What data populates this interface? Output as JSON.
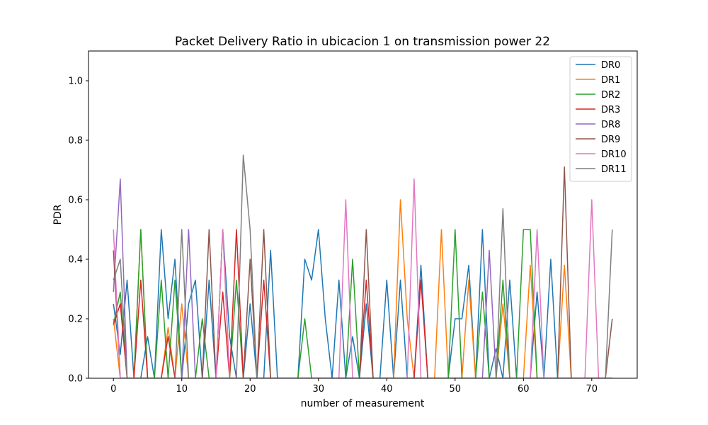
{
  "chart_data": {
    "type": "line",
    "title": "Packet Delivery Ratio in ubicacion 1 on transmission power 22",
    "xlabel": "number of measurement",
    "ylabel": "PDR",
    "xlim": [
      -3.65,
      76.65
    ],
    "ylim": [
      0,
      1.1
    ],
    "xticks": [
      0,
      10,
      20,
      30,
      40,
      50,
      60,
      70
    ],
    "yticks": [
      0.0,
      0.2,
      0.4,
      0.6,
      0.8,
      1.0
    ],
    "xtick_labels": [
      "0",
      "10",
      "20",
      "30",
      "40",
      "50",
      "60",
      "70"
    ],
    "ytick_labels": [
      "0.0",
      "0.2",
      "0.4",
      "0.6",
      "0.8",
      "1.0"
    ],
    "grid": false,
    "legend_position": "upper right",
    "series": [
      {
        "name": "DR0",
        "color": "#1f77b4",
        "values": [
          0.25,
          0.08,
          0.33,
          0.0,
          0.0,
          0.14,
          0.0,
          0.5,
          0.2,
          0.4,
          0.0,
          0.25,
          0.33,
          0.0,
          0.33,
          0.0,
          0.5,
          0.14,
          0.0,
          0.0,
          0.25,
          0.0,
          0.0,
          0.43,
          0.0,
          0.0,
          0.0,
          0.0,
          0.4,
          0.33,
          0.5,
          0.2,
          0.0,
          0.33,
          0.0,
          0.14,
          0.0,
          0.25,
          0.0,
          0.0,
          0.33,
          0.0,
          0.33,
          0.0,
          0.0,
          0.38,
          0.0,
          0.0,
          0.0,
          0.0,
          0.2,
          0.2,
          0.38,
          0.0,
          0.5,
          0.0,
          0.1,
          0.0,
          0.33,
          0.0,
          0.0,
          0.0,
          0.29,
          0.0,
          0.4,
          0.0,
          0.0,
          0.0,
          0.0,
          0.0,
          0.0,
          0.0,
          0.0,
          0.0
        ]
      },
      {
        "name": "DR1",
        "color": "#ff7f0e",
        "values": [
          0.2,
          0.0,
          0.0,
          0.0,
          0.5,
          0.0,
          0.0,
          0.0,
          0.17,
          0.0,
          0.25,
          0.0,
          0.0,
          0.0,
          0.0,
          0.0,
          0.5,
          0.0,
          0.0,
          0.0,
          0.0,
          0.0,
          0.0,
          0.0,
          0.0,
          0.0,
          0.0,
          0.0,
          0.0,
          0.0,
          0.0,
          0.0,
          0.0,
          0.0,
          0.0,
          0.0,
          0.0,
          0.0,
          0.0,
          0.0,
          0.0,
          0.0,
          0.6,
          0.2,
          0.0,
          0.0,
          0.0,
          0.0,
          0.5,
          0.0,
          0.0,
          0.0,
          0.33,
          0.0,
          0.0,
          0.0,
          0.0,
          0.25,
          0.0,
          0.0,
          0.0,
          0.38,
          0.0,
          0.0,
          0.0,
          0.0,
          0.38,
          0.0,
          0.0,
          0.0,
          0.0,
          0.0,
          0.0,
          0.0
        ]
      },
      {
        "name": "DR2",
        "color": "#2ca02c",
        "values": [
          0.18,
          0.29,
          0.0,
          0.0,
          0.5,
          0.0,
          0.0,
          0.33,
          0.0,
          0.33,
          0.0,
          0.0,
          0.0,
          0.2,
          0.0,
          0.0,
          0.0,
          0.0,
          0.33,
          0.0,
          0.0,
          0.0,
          0.0,
          0.0,
          0.0,
          0.0,
          0.0,
          0.0,
          0.2,
          0.0,
          0.0,
          0.0,
          0.0,
          0.0,
          0.0,
          0.4,
          0.0,
          0.0,
          0.0,
          0.0,
          0.0,
          0.0,
          0.0,
          0.0,
          0.0,
          0.0,
          0.0,
          0.0,
          0.0,
          0.0,
          0.5,
          0.0,
          0.0,
          0.0,
          0.29,
          0.0,
          0.0,
          0.33,
          0.0,
          0.0,
          0.5,
          0.5,
          0.0,
          0.0,
          0.0,
          0.0,
          0.0,
          0.0,
          0.0,
          0.0,
          0.0,
          0.0,
          0.0,
          0.0
        ]
      },
      {
        "name": "DR3",
        "color": "#d62728",
        "values": [
          0.18,
          0.25,
          0.0,
          0.0,
          0.33,
          0.0,
          0.0,
          0.0,
          0.14,
          0.0,
          0.0,
          0.0,
          0.0,
          0.0,
          0.0,
          0.0,
          0.29,
          0.0,
          0.5,
          0.0,
          0.0,
          0.0,
          0.33,
          0.0,
          0.0,
          0.0,
          0.0,
          0.0,
          0.0,
          0.0,
          0.0,
          0.0,
          0.0,
          0.0,
          0.0,
          0.0,
          0.0,
          0.33,
          0.0,
          0.0,
          0.0,
          0.0,
          0.0,
          0.0,
          0.0,
          0.33,
          0.0,
          0.0,
          0.0,
          0.0,
          0.0,
          0.0,
          0.0,
          0.0,
          0.0,
          0.0,
          0.0,
          0.0,
          0.0,
          0.0,
          0.0,
          0.0,
          0.0,
          0.0,
          0.0,
          0.0,
          0.0,
          0.0,
          0.0,
          0.0,
          0.0,
          0.0,
          0.0,
          0.0
        ]
      },
      {
        "name": "DR8",
        "color": "#9467bd",
        "values": [
          0.29,
          0.67,
          0.0,
          0.0,
          0.0,
          0.0,
          0.0,
          0.0,
          0.0,
          0.0,
          0.0,
          0.5,
          0.0,
          0.0,
          0.0,
          0.0,
          0.0,
          0.0,
          0.0,
          0.0,
          0.0,
          0.0,
          0.0,
          0.0,
          0.0,
          0.0,
          0.0,
          0.0,
          0.0,
          0.0,
          0.0,
          0.0,
          0.0,
          0.0,
          0.0,
          0.0,
          0.0,
          0.0,
          0.0,
          0.0,
          0.0,
          0.0,
          0.0,
          0.0,
          0.0,
          0.0,
          0.0,
          0.0,
          0.0,
          0.0,
          0.0,
          0.0,
          0.0,
          0.0,
          0.0,
          0.43,
          0.0,
          0.0,
          0.0,
          0.0,
          0.0,
          0.0,
          0.0,
          0.0,
          0.0,
          0.0,
          0.0,
          0.0,
          0.0,
          0.0,
          0.0,
          0.0,
          0.0,
          0.0
        ]
      },
      {
        "name": "DR9",
        "color": "#8c564b",
        "values": [
          0.43,
          0.0,
          0.0,
          0.0,
          0.0,
          0.0,
          0.0,
          0.0,
          0.0,
          0.0,
          0.0,
          0.0,
          0.0,
          0.0,
          0.5,
          0.0,
          0.0,
          0.0,
          0.0,
          0.0,
          0.4,
          0.0,
          0.5,
          0.0,
          0.0,
          0.0,
          0.0,
          0.0,
          0.0,
          0.0,
          0.0,
          0.0,
          0.0,
          0.0,
          0.0,
          0.0,
          0.0,
          0.5,
          0.0,
          0.0,
          0.0,
          0.0,
          0.0,
          0.0,
          0.0,
          0.0,
          0.0,
          0.0,
          0.0,
          0.0,
          0.0,
          0.0,
          0.0,
          0.0,
          0.0,
          0.0,
          0.0,
          0.0,
          0.0,
          0.0,
          0.0,
          0.0,
          0.0,
          0.0,
          0.0,
          0.0,
          0.71,
          0.0,
          0.0,
          0.0,
          0.0,
          0.0,
          0.0,
          0.2
        ]
      },
      {
        "name": "DR10",
        "color": "#e377c2",
        "values": [
          0.5,
          0.0,
          0.0,
          0.0,
          0.0,
          0.0,
          0.0,
          0.0,
          0.0,
          0.0,
          0.0,
          0.0,
          0.0,
          0.0,
          0.0,
          0.0,
          0.5,
          0.0,
          0.0,
          0.0,
          0.0,
          0.0,
          0.0,
          0.0,
          0.0,
          0.0,
          0.0,
          0.0,
          0.0,
          0.0,
          0.0,
          0.0,
          0.0,
          0.0,
          0.6,
          0.0,
          0.0,
          0.0,
          0.0,
          0.0,
          0.0,
          0.0,
          0.0,
          0.0,
          0.67,
          0.0,
          0.0,
          0.0,
          0.0,
          0.0,
          0.0,
          0.0,
          0.0,
          0.0,
          0.0,
          0.0,
          0.0,
          0.0,
          0.0,
          0.0,
          0.0,
          0.0,
          0.5,
          0.0,
          0.0,
          0.0,
          0.0,
          0.0,
          0.0,
          0.0,
          0.6,
          0.0,
          0.0,
          0.0
        ]
      },
      {
        "name": "DR11",
        "color": "#7f7f7f",
        "values": [
          0.33,
          0.4,
          0.0,
          0.0,
          0.0,
          0.0,
          0.0,
          0.0,
          0.0,
          0.0,
          0.5,
          0.0,
          0.0,
          0.0,
          0.0,
          0.0,
          0.0,
          0.0,
          0.0,
          0.75,
          0.5,
          0.0,
          0.0,
          0.0,
          0.0,
          0.0,
          0.0,
          0.0,
          0.0,
          0.0,
          0.0,
          0.0,
          0.0,
          0.0,
          0.0,
          0.0,
          0.0,
          0.0,
          0.0,
          0.0,
          0.0,
          0.0,
          0.0,
          0.0,
          0.0,
          0.0,
          0.0,
          0.0,
          0.0,
          0.0,
          0.0,
          0.0,
          0.0,
          0.0,
          0.0,
          0.0,
          0.0,
          0.57,
          0.0,
          0.0,
          0.0,
          0.0,
          0.0,
          0.0,
          0.0,
          0.0,
          0.0,
          0.0,
          0.0,
          0.0,
          0.0,
          0.0,
          0.0,
          0.5
        ]
      }
    ]
  }
}
